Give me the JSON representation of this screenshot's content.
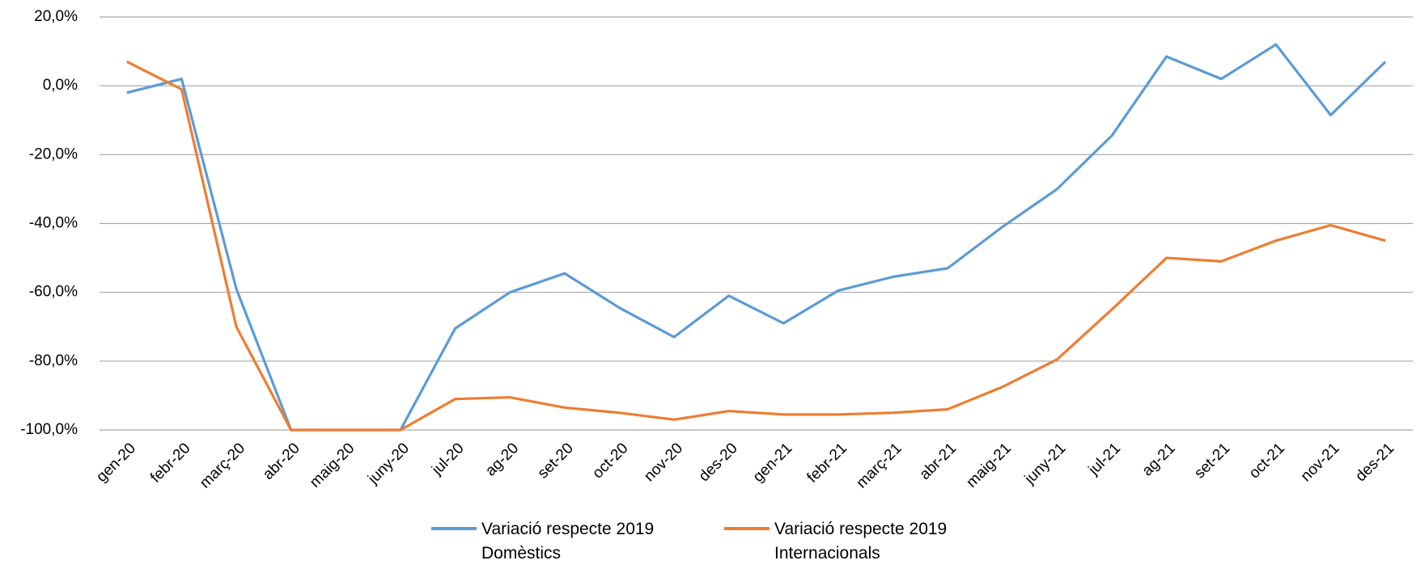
{
  "chart_data": {
    "type": "line",
    "categories": [
      "gen-20",
      "febr-20",
      "març-20",
      "abr-20",
      "maig-20",
      "juny-20",
      "jul-20",
      "ag-20",
      "set-20",
      "oct-20",
      "nov-20",
      "des-20",
      "gen-21",
      "febr-21",
      "març-21",
      "abr-21",
      "maig-21",
      "juny-21",
      "jul-21",
      "ag-21",
      "set-21",
      "oct-21",
      "nov-21",
      "des-21"
    ],
    "series": [
      {
        "name": "Variació respecte 2019 Domèstics",
        "color": "#5b9bd5",
        "values": [
          -2,
          2,
          -59,
          -100,
          -100,
          -100,
          -70.5,
          -60,
          -54.5,
          -64.5,
          -73,
          -61,
          -69,
          -59.5,
          -55.5,
          -53,
          -41,
          -30,
          -14.5,
          8.5,
          2,
          12,
          -8.5,
          7
        ]
      },
      {
        "name": "Variació respecte 2019 Internacionals",
        "color": "#ed7d31",
        "values": [
          7,
          -1,
          -70,
          -100,
          -100,
          -100,
          -91,
          -90.5,
          -93.5,
          -95,
          -97,
          -94.5,
          -95.5,
          -95.5,
          -95,
          -94,
          -87.5,
          -79.5,
          -65,
          -50,
          -51,
          -45,
          -40.5,
          -45
        ]
      }
    ],
    "ylim": [
      -100,
      20
    ],
    "yticks": [
      {
        "value": -100,
        "label": "-100,0%"
      },
      {
        "value": -80,
        "label": "-80,0%"
      },
      {
        "value": -60,
        "label": "-60,0%"
      },
      {
        "value": -40,
        "label": "-40,0%"
      },
      {
        "value": -20,
        "label": "-20,0%"
      },
      {
        "value": 0,
        "label": "0,0%"
      },
      {
        "value": 20,
        "label": "20,0%"
      }
    ],
    "grid": true
  }
}
